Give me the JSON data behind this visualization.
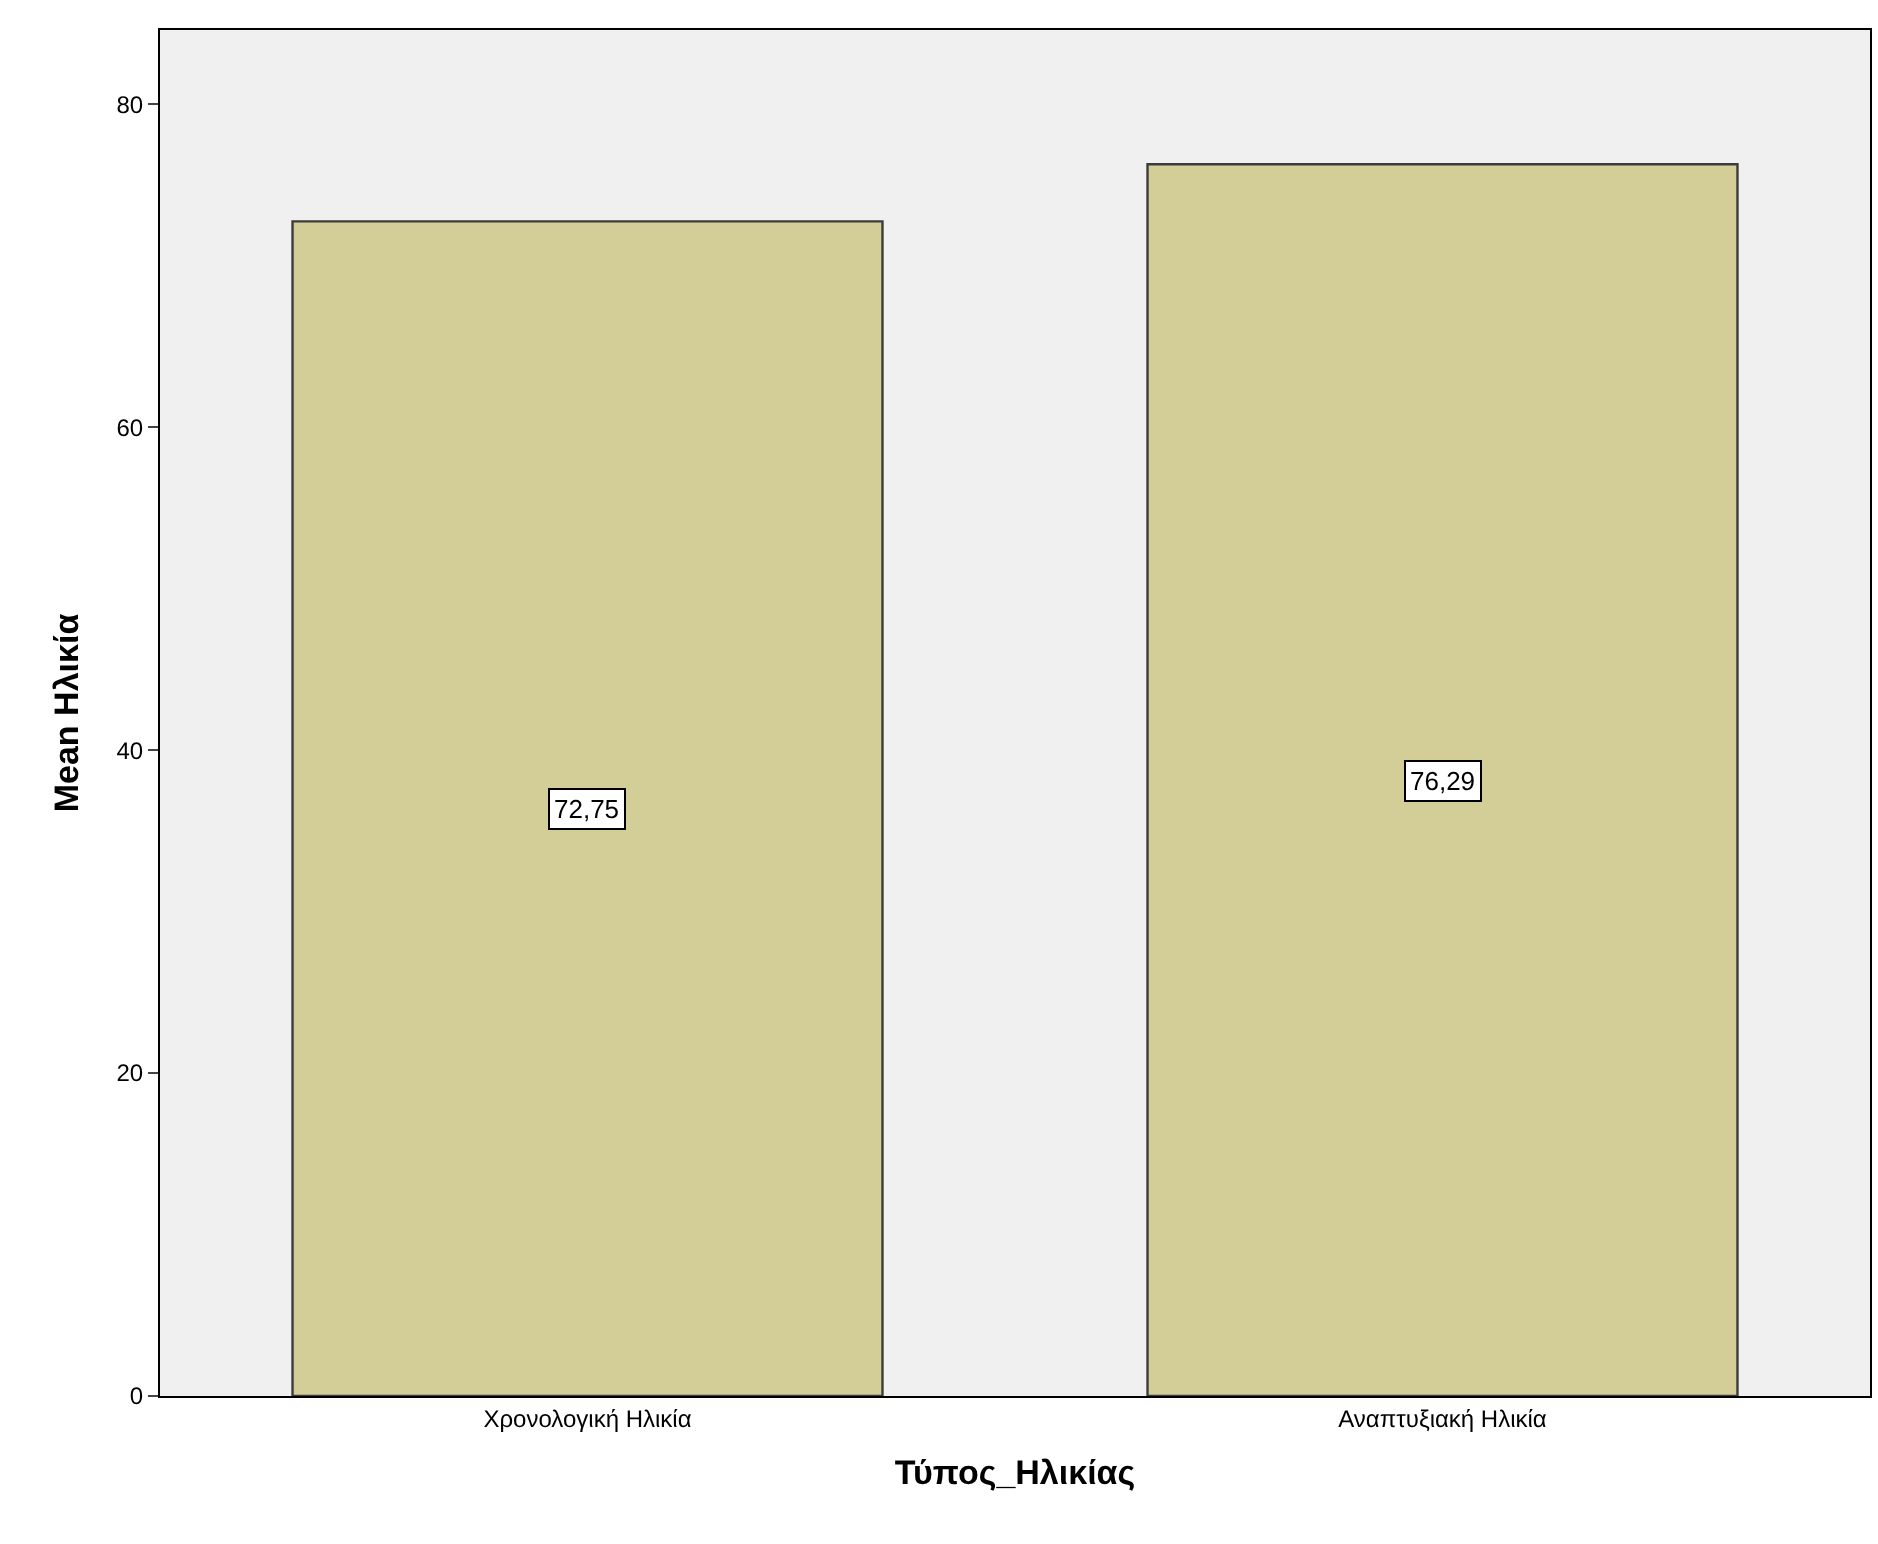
{
  "chart_data": {
    "type": "bar",
    "xlabel": "Τύπος_Ηλικίας",
    "ylabel": "Mean Ηλικία",
    "categories": [
      "Χρονολογική Ηλικία",
      "Αναπτυξιακή Ηλικία"
    ],
    "values": [
      72.75,
      76.29
    ],
    "value_labels": [
      "72,75",
      "76,29"
    ],
    "color": "#d3ce97",
    "ylim": [
      0,
      84.6
    ],
    "yticks": [
      0,
      20,
      40,
      60,
      80
    ],
    "grid": false,
    "legend": false
  }
}
